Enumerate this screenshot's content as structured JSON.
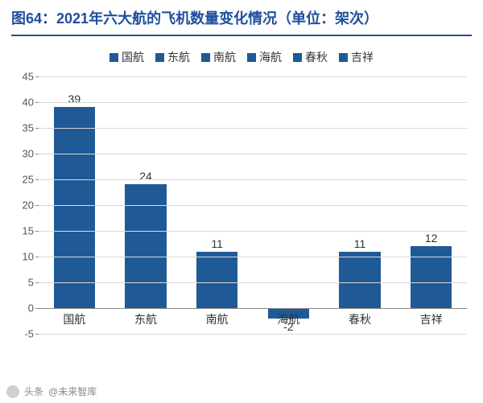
{
  "title": "图64：2021年六大航的飞机数量变化情况（单位：架次）",
  "title_color": "#1f4e9c",
  "underline_color": "#1f4e9c",
  "legend_items": [
    "国航",
    "东航",
    "南航",
    "海航",
    "春秋",
    "吉祥"
  ],
  "chart": {
    "type": "bar",
    "categories": [
      "国航",
      "东航",
      "南航",
      "海航",
      "春秋",
      "吉祥"
    ],
    "values": [
      39,
      24,
      11,
      -2,
      11,
      12
    ],
    "bar_color": "#1f5a96",
    "background_color": "#ffffff",
    "grid_color": "#d9d9d9",
    "ylim": [
      -5,
      45
    ],
    "ytick_step": 5,
    "bar_width_ratio": 0.58,
    "label_fontsize": 14,
    "value_label_fontsize": 14,
    "tick_fontsize": 13
  },
  "footer": {
    "source_prefix": "头条",
    "source_name": "@未来智库"
  }
}
